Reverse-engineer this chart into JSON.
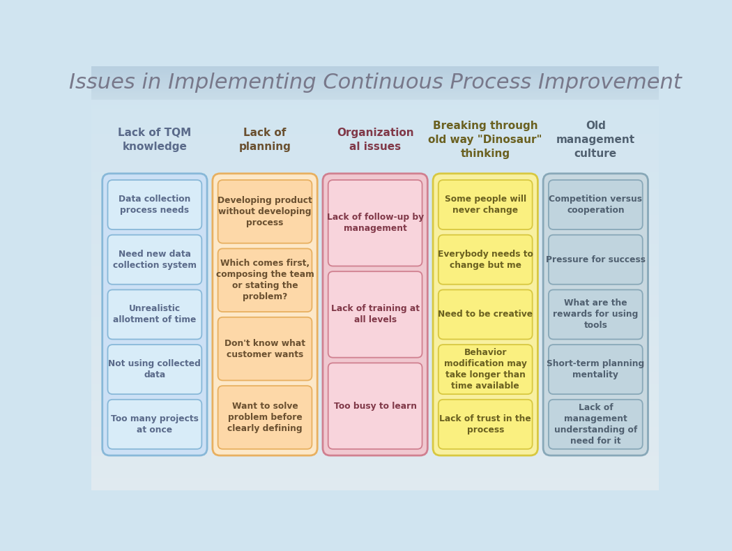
{
  "title": "Issues in Implementing Continuous Process Improvement",
  "title_color": "#78788a",
  "title_bg_top": "#b8cfe0",
  "title_bg_bot": "#c8dce8",
  "bg_color_top": "#d0e4f0",
  "bg_color_bot": "#e0eaf0",
  "columns": [
    {
      "header": "Lack of TQM\nknowledge",
      "header_color": "#5a6a8a",
      "outer_bg": "#cce0f5",
      "outer_border": "#88b8d8",
      "item_bg": "#d8ecf8",
      "item_border": "#88b8d8",
      "items": [
        "Data collection\nprocess needs",
        "Need new data\ncollection system",
        "Unrealistic\nallotment of time",
        "Not using collected\ndata",
        "Too many projects\nat once"
      ]
    },
    {
      "header": "Lack of\nplanning",
      "header_color": "#6a5030",
      "outer_bg": "#fde8c8",
      "outer_border": "#e8b060",
      "item_bg": "#fdd8a8",
      "item_border": "#e8b060",
      "items": [
        "Developing product\nwithout developing\nprocess",
        "Which comes first,\ncomposing the team\nor stating the\nproblem?",
        "Don't know what\ncustomer wants",
        "Want to solve\nproblem before\nclearly defining"
      ]
    },
    {
      "header": "Organization\nal issues",
      "header_color": "#803848",
      "outer_bg": "#f0c8d0",
      "outer_border": "#d08090",
      "item_bg": "#f8d4dc",
      "item_border": "#d08090",
      "items": [
        "Lack of follow-up by\nmanagement",
        "Lack of training at\nall levels",
        "Too busy to learn"
      ]
    },
    {
      "header": "Breaking through\nold way \"Dinosaur\"\nthinking",
      "header_color": "#6a6020",
      "outer_bg": "#f8f0a0",
      "outer_border": "#d8c840",
      "item_bg": "#faf080",
      "item_border": "#d8c840",
      "items": [
        "Some people will\nnever change",
        "Everybody needs to\nchange but me",
        "Need to be creative",
        "Behavior\nmodification may\ntake longer than\ntime available",
        "Lack of trust in the\nprocess"
      ]
    },
    {
      "header": "Old\nmanagement\nculture",
      "header_color": "#506070",
      "outer_bg": "#c8d8e0",
      "outer_border": "#88a8b8",
      "item_bg": "#c0d4de",
      "item_border": "#88a8b8",
      "items": [
        "Competition versus\ncooperation",
        "Pressure for success",
        "What are the\nrewards for using\ntools",
        "Short-term planning\nmentality",
        "Lack of\nmanagement\nunderstanding of\nneed for it"
      ]
    }
  ]
}
